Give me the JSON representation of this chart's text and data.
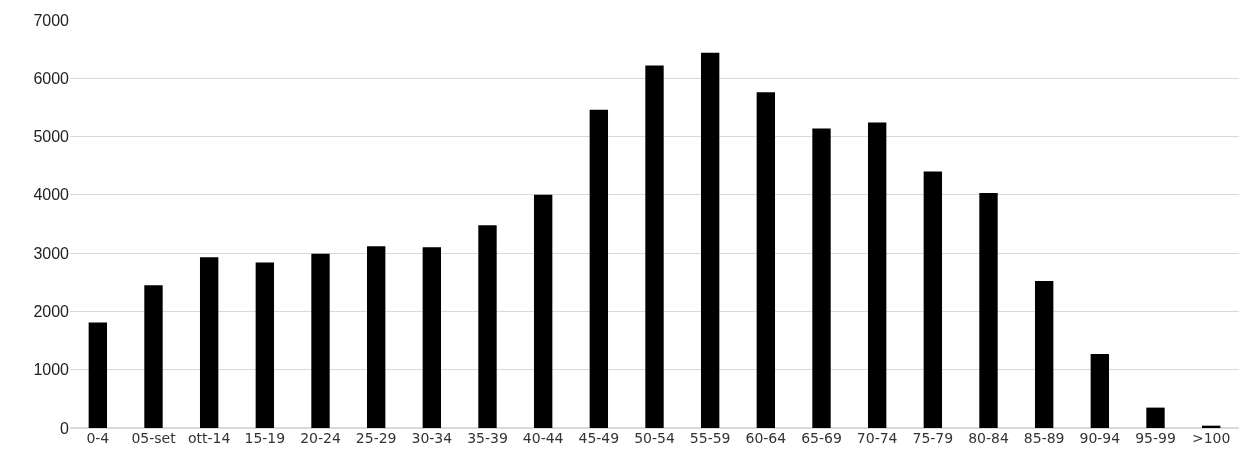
{
  "chart_data": {
    "type": "bar",
    "categories": [
      "0-4",
      "05-set",
      "ott-14",
      "15-19",
      "20-24",
      "25-29",
      "30-34",
      "35-39",
      "40-44",
      "45-49",
      "50-54",
      "55-59",
      "60-64",
      "65-69",
      "70-74",
      "75-79",
      "80-84",
      "85-89",
      "90-94",
      "95-99",
      ">100"
    ],
    "values": [
      1810,
      2450,
      2930,
      2840,
      2990,
      3120,
      3100,
      3480,
      4000,
      5460,
      6220,
      6440,
      5760,
      5140,
      5240,
      4400,
      4030,
      2520,
      1270,
      350,
      40
    ],
    "color": "#000000",
    "ylim": [
      0,
      7000
    ],
    "yticks": [
      0,
      1000,
      2000,
      3000,
      4000,
      5000,
      6000,
      7000
    ],
    "grid": "y"
  }
}
